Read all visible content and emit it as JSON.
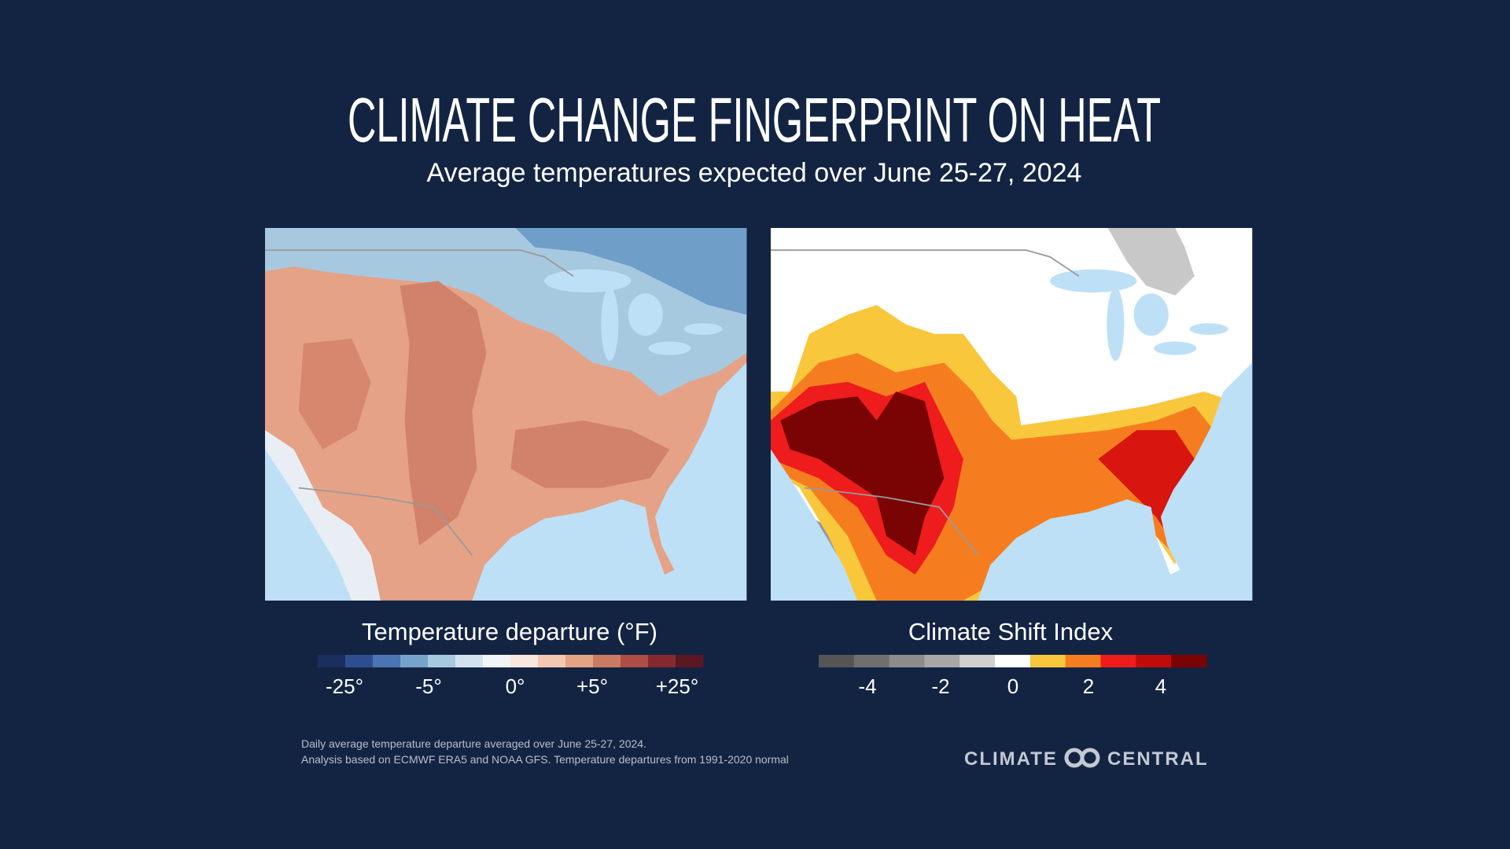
{
  "title": "CLIMATE CHANGE FINGERPRINT ON HEAT",
  "subtitle": "Average temperatures expected over June 25-27, 2024",
  "legends": [
    {
      "title": "Temperature departure (°F)",
      "colors": [
        "#1b2f5e",
        "#2f4d8e",
        "#4a74b3",
        "#76a3cc",
        "#a6c9de",
        "#d2e3ef",
        "#f1f5f8",
        "#f9e6dd",
        "#f3c7b0",
        "#e3a385",
        "#c97a63",
        "#ad4d45",
        "#842a2f",
        "#591822"
      ],
      "labels": [
        "-25°",
        "-5°",
        "0°",
        "+5°",
        "+25°"
      ]
    },
    {
      "title": "Climate Shift Index",
      "colors": [
        "#555555",
        "#6f6f6f",
        "#8c8c8c",
        "#a7a7a7",
        "#d0d0d0",
        "#ffffff",
        "#f9c73c",
        "#f57d1f",
        "#ee1c1c",
        "#c00b0b",
        "#7a0404"
      ],
      "labels": [
        "-4",
        "-2",
        "0",
        "2",
        "4"
      ]
    }
  ],
  "footnote": [
    "Daily average temperature departure averaged over June 25-27, 2024.",
    "Analysis based on ECMWF ERA5 and NOAA GFS. Temperature departures from 1991-2020 normal"
  ],
  "logo": {
    "left": "CLIMATE",
    "right": "CENTRAL"
  }
}
